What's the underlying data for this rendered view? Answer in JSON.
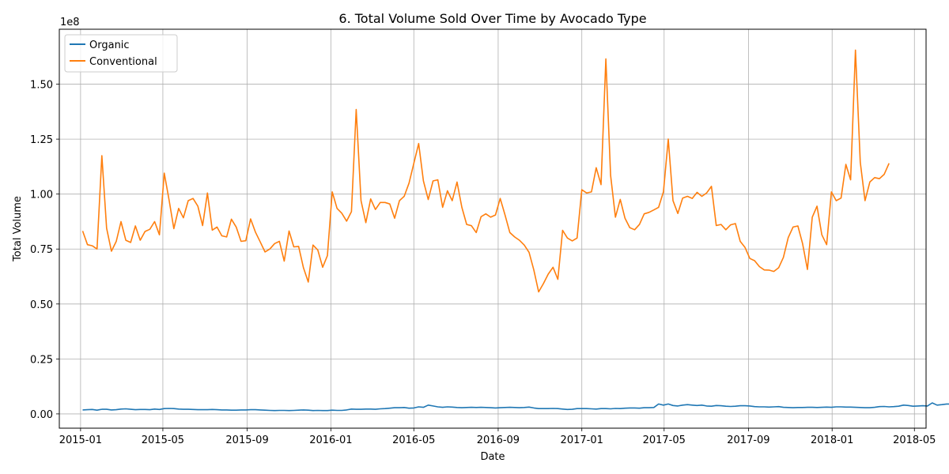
{
  "chart_data": {
    "type": "line",
    "title": "6. Total Volume Sold Over Time by Avocado Type",
    "xlabel": "Date",
    "ylabel": "Total Volume",
    "y_offset_label": "1e8",
    "y_multiplier": 100000000,
    "x_start": "2015-01-04",
    "x_step_days": 7,
    "xlim": [
      "2014-12-01",
      "2018-05-18"
    ],
    "ylim": [
      -0.065,
      1.75
    ],
    "x_ticks": [
      {
        "date": "2015-01-01",
        "label": "2015-01"
      },
      {
        "date": "2015-05-01",
        "label": "2015-05"
      },
      {
        "date": "2015-09-01",
        "label": "2015-09"
      },
      {
        "date": "2016-01-01",
        "label": "2016-01"
      },
      {
        "date": "2016-05-01",
        "label": "2016-05"
      },
      {
        "date": "2016-09-01",
        "label": "2016-09"
      },
      {
        "date": "2017-01-01",
        "label": "2017-01"
      },
      {
        "date": "2017-05-01",
        "label": "2017-05"
      },
      {
        "date": "2017-09-01",
        "label": "2017-09"
      },
      {
        "date": "2018-01-01",
        "label": "2018-01"
      },
      {
        "date": "2018-05-01",
        "label": "2018-05"
      }
    ],
    "y_ticks": [
      {
        "value": 0,
        "label": "0.00"
      },
      {
        "value": 0.25,
        "label": "0.25"
      },
      {
        "value": 0.5,
        "label": "0.50"
      },
      {
        "value": 0.75,
        "label": "0.75"
      },
      {
        "value": 1.0,
        "label": "1.00"
      },
      {
        "value": 1.25,
        "label": "1.25"
      },
      {
        "value": 1.5,
        "label": "1.50"
      }
    ],
    "grid": true,
    "legend_position": "upper-left",
    "series": [
      {
        "name": "Organic",
        "color": "#1f77b4",
        "values": [
          0.018,
          0.019,
          0.02,
          0.017,
          0.021,
          0.021,
          0.018,
          0.019,
          0.022,
          0.023,
          0.021,
          0.019,
          0.02,
          0.02,
          0.019,
          0.022,
          0.02,
          0.024,
          0.025,
          0.024,
          0.022,
          0.021,
          0.021,
          0.02,
          0.019,
          0.019,
          0.019,
          0.02,
          0.019,
          0.018,
          0.018,
          0.017,
          0.017,
          0.018,
          0.018,
          0.019,
          0.019,
          0.018,
          0.017,
          0.016,
          0.015,
          0.016,
          0.016,
          0.015,
          0.016,
          0.017,
          0.018,
          0.017,
          0.015,
          0.016,
          0.015,
          0.015,
          0.017,
          0.016,
          0.016,
          0.018,
          0.022,
          0.021,
          0.021,
          0.022,
          0.022,
          0.021,
          0.023,
          0.024,
          0.026,
          0.028,
          0.028,
          0.029,
          0.026,
          0.027,
          0.032,
          0.03,
          0.04,
          0.036,
          0.032,
          0.03,
          0.032,
          0.031,
          0.029,
          0.028,
          0.029,
          0.03,
          0.029,
          0.03,
          0.029,
          0.028,
          0.027,
          0.028,
          0.029,
          0.03,
          0.029,
          0.028,
          0.029,
          0.031,
          0.027,
          0.024,
          0.024,
          0.024,
          0.025,
          0.024,
          0.022,
          0.02,
          0.021,
          0.024,
          0.024,
          0.024,
          0.023,
          0.022,
          0.024,
          0.024,
          0.023,
          0.025,
          0.024,
          0.026,
          0.027,
          0.027,
          0.026,
          0.028,
          0.028,
          0.029,
          0.045,
          0.04,
          0.045,
          0.038,
          0.036,
          0.04,
          0.042,
          0.04,
          0.038,
          0.04,
          0.036,
          0.035,
          0.038,
          0.037,
          0.035,
          0.034,
          0.035,
          0.037,
          0.037,
          0.036,
          0.033,
          0.032,
          0.032,
          0.031,
          0.032,
          0.033,
          0.03,
          0.029,
          0.028,
          0.029,
          0.029,
          0.03,
          0.03,
          0.029,
          0.03,
          0.031,
          0.03,
          0.032,
          0.032,
          0.031,
          0.031,
          0.03,
          0.029,
          0.028,
          0.028,
          0.03,
          0.033,
          0.034,
          0.032,
          0.033,
          0.035,
          0.04,
          0.038,
          0.035,
          0.036,
          0.037,
          0.036,
          0.05,
          0.04,
          0.042,
          0.045,
          0.045,
          0.044,
          0.041
        ]
      },
      {
        "name": "Conventional",
        "color": "#ff7f0e",
        "values": [
          0.832,
          0.77,
          0.765,
          0.75,
          1.175,
          0.845,
          0.74,
          0.785,
          0.875,
          0.79,
          0.78,
          0.855,
          0.79,
          0.83,
          0.84,
          0.875,
          0.815,
          1.095,
          0.975,
          0.843,
          0.935,
          0.892,
          0.97,
          0.98,
          0.945,
          0.857,
          1.005,
          0.836,
          0.85,
          0.81,
          0.805,
          0.886,
          0.85,
          0.785,
          0.788,
          0.887,
          0.827,
          0.782,
          0.737,
          0.75,
          0.775,
          0.785,
          0.695,
          0.832,
          0.76,
          0.762,
          0.665,
          0.6,
          0.768,
          0.745,
          0.667,
          0.72,
          1.01,
          0.935,
          0.913,
          0.877,
          0.92,
          1.385,
          0.97,
          0.87,
          0.978,
          0.93,
          0.962,
          0.962,
          0.955,
          0.89,
          0.97,
          0.99,
          1.05,
          1.14,
          1.23,
          1.06,
          0.975,
          1.06,
          1.065,
          0.94,
          1.015,
          0.97,
          1.055,
          0.94,
          0.862,
          0.856,
          0.825,
          0.897,
          0.91,
          0.895,
          0.905,
          0.98,
          0.905,
          0.825,
          0.805,
          0.79,
          0.768,
          0.735,
          0.655,
          0.555,
          0.593,
          0.636,
          0.667,
          0.612,
          0.835,
          0.8,
          0.787,
          0.8,
          1.02,
          1.005,
          1.01,
          1.12,
          1.043,
          1.615,
          1.085,
          0.895,
          0.976,
          0.89,
          0.847,
          0.838,
          0.862,
          0.91,
          0.917,
          0.928,
          0.94,
          1.01,
          1.25,
          0.97,
          0.912,
          0.982,
          0.99,
          0.98,
          1.008,
          0.99,
          1.005,
          1.035,
          0.857,
          0.862,
          0.838,
          0.86,
          0.866,
          0.785,
          0.757,
          0.707,
          0.697,
          0.67,
          0.655,
          0.654,
          0.648,
          0.665,
          0.712,
          0.802,
          0.85,
          0.855,
          0.774,
          0.657,
          0.895,
          0.945,
          0.815,
          0.77,
          1.01,
          0.97,
          0.982,
          1.135,
          1.065,
          1.655,
          1.145,
          0.97,
          1.055,
          1.075,
          1.07,
          1.09,
          1.14
        ]
      }
    ]
  }
}
